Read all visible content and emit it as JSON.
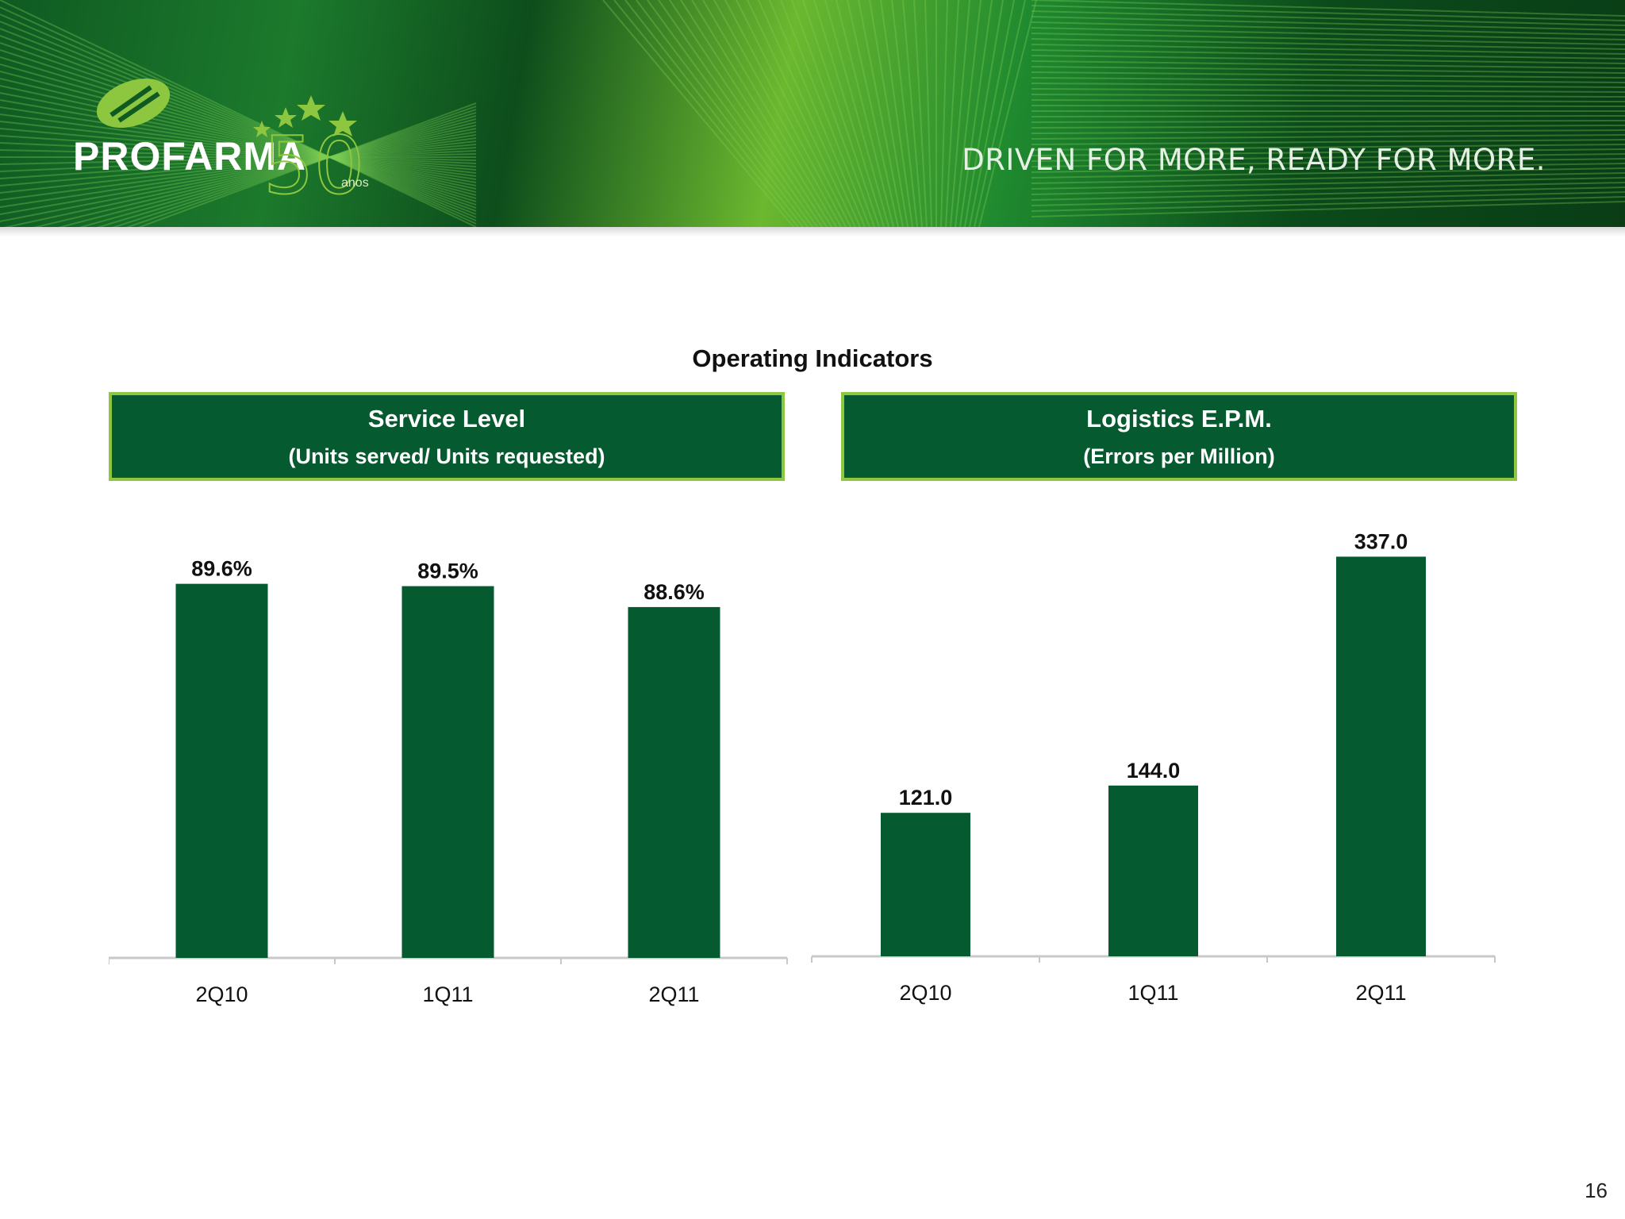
{
  "header": {
    "brand_name": "PROFARMA",
    "brand_years": "50",
    "brand_years_suffix": "anos",
    "tagline": "DRIVEN FOR MORE, READY FOR MORE."
  },
  "page_title": "Operating Indicators",
  "panels": [
    {
      "title": "Service Level",
      "subtitle": "(Units served/ Units requested)"
    },
    {
      "title": "Logistics E.P.M.",
      "subtitle": "(Errors per Million)"
    }
  ],
  "colors": {
    "bar": "#065a30",
    "panel_border": "#8dc63f",
    "axis": "#c8c8c8"
  },
  "chart_data": [
    {
      "type": "bar",
      "title": "Service Level",
      "categories": [
        "2Q10",
        "1Q11",
        "2Q11"
      ],
      "values": [
        89.6,
        89.5,
        88.6
      ],
      "labels": [
        "89.6%",
        "89.5%",
        "88.6%"
      ],
      "ylim": [
        73.5,
        90.1
      ],
      "grid": false
    },
    {
      "type": "bar",
      "title": "Logistics E.P.M.",
      "categories": [
        "2Q10",
        "1Q11",
        "2Q11"
      ],
      "values": [
        121.0,
        144.0,
        337.0
      ],
      "labels": [
        "121.0",
        "144.0",
        "337.0"
      ],
      "ylim": [
        0,
        350
      ],
      "grid": false
    }
  ],
  "page_number": "16"
}
